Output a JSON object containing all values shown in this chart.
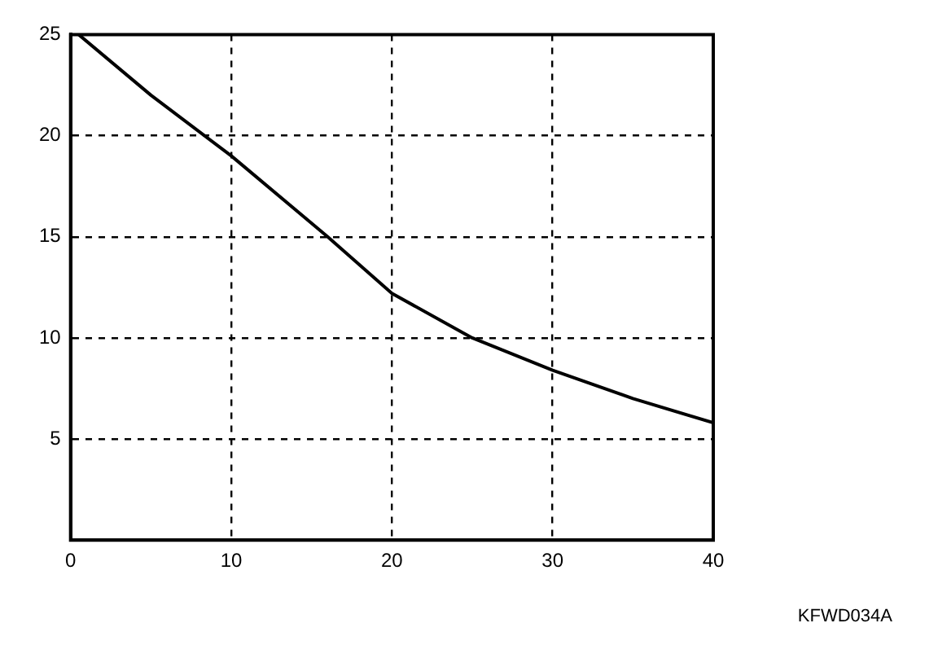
{
  "chart_data": {
    "type": "line",
    "x": [
      0.5,
      5,
      10,
      16,
      20,
      25,
      30,
      35,
      40
    ],
    "series": [
      {
        "color": "#000000",
        "values": [
          25,
          22,
          19,
          15,
          12.2,
          10,
          8.4,
          7,
          5.8
        ]
      }
    ],
    "xlim": [
      0,
      40
    ],
    "xticks": [
      0,
      10,
      20,
      30,
      40
    ],
    "ylim": [
      0,
      25
    ],
    "yticks": [
      5,
      10,
      15,
      20,
      25
    ],
    "grid": true,
    "marker": "none",
    "line_style": "solid",
    "annotations": [
      "KFWD034A"
    ]
  }
}
